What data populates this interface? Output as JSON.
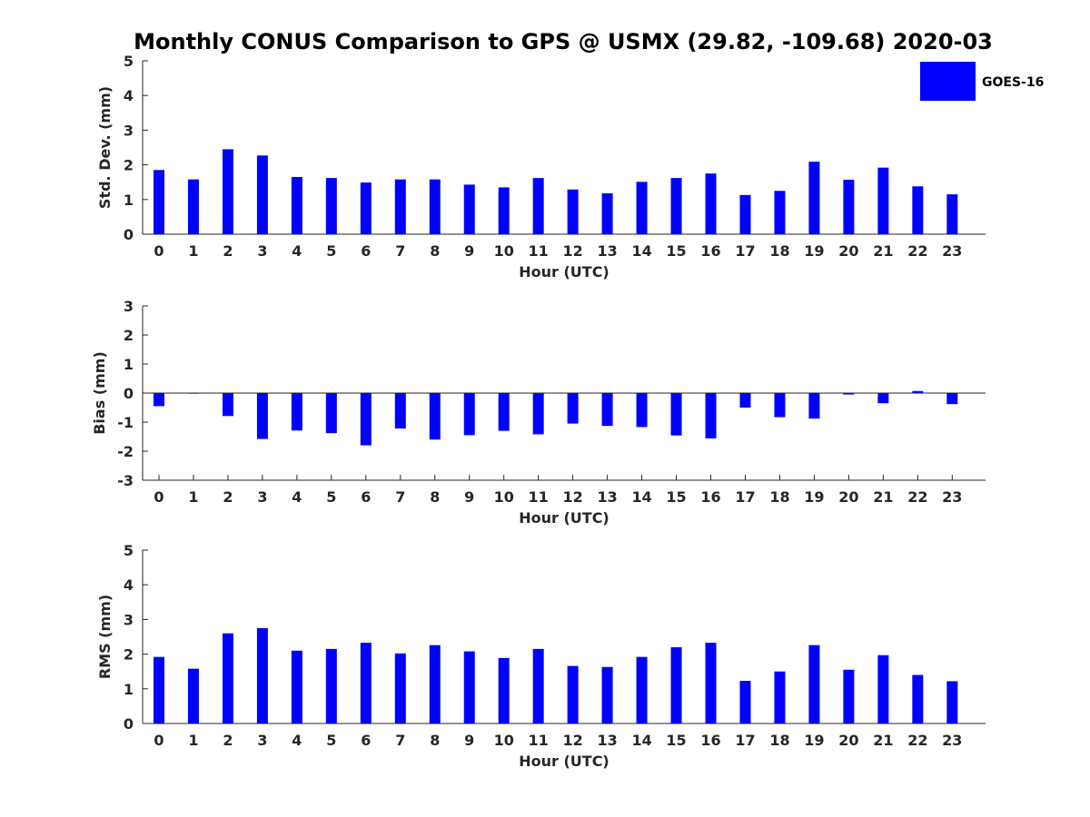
{
  "title": "Monthly CONUS Comparison to GPS @ USMX (29.82, -109.68) 2020-03",
  "legend": {
    "label": "GOES-16",
    "color": "#0000ff",
    "placement": "top-right"
  },
  "chart_data": [
    {
      "type": "bar",
      "xlabel": "Hour (UTC)",
      "ylabel": "Std. Dev. (mm)",
      "ylim": [
        0,
        5
      ],
      "yticks": [
        0,
        1,
        2,
        3,
        4,
        5
      ],
      "categories": [
        "0",
        "1",
        "2",
        "3",
        "4",
        "5",
        "6",
        "7",
        "8",
        "9",
        "10",
        "11",
        "12",
        "13",
        "14",
        "15",
        "16",
        "17",
        "18",
        "19",
        "20",
        "21",
        "22",
        "23"
      ],
      "series": [
        {
          "name": "GOES-16",
          "color": "#0000ff",
          "values": [
            1.85,
            1.58,
            2.45,
            2.27,
            1.65,
            1.62,
            1.49,
            1.58,
            1.58,
            1.43,
            1.35,
            1.62,
            1.29,
            1.18,
            1.51,
            1.62,
            1.75,
            1.13,
            1.25,
            2.09,
            1.57,
            1.92,
            1.38,
            1.15
          ]
        }
      ]
    },
    {
      "type": "bar",
      "xlabel": "Hour (UTC)",
      "ylabel": "Bias (mm)",
      "ylim": [
        -3,
        3
      ],
      "yticks": [
        -3,
        -2,
        -1,
        0,
        1,
        2,
        3
      ],
      "zero_line": true,
      "categories": [
        "0",
        "1",
        "2",
        "3",
        "4",
        "5",
        "6",
        "7",
        "8",
        "9",
        "10",
        "11",
        "12",
        "13",
        "14",
        "15",
        "16",
        "17",
        "18",
        "19",
        "20",
        "21",
        "22",
        "23"
      ],
      "series": [
        {
          "name": "GOES-16",
          "color": "#0000ff",
          "values": [
            -0.45,
            -0.02,
            -0.79,
            -1.58,
            -1.29,
            -1.38,
            -1.8,
            -1.22,
            -1.6,
            -1.45,
            -1.3,
            -1.42,
            -1.05,
            -1.13,
            -1.17,
            -1.46,
            -1.56,
            -0.5,
            -0.83,
            -0.88,
            -0.05,
            -0.35,
            0.07,
            -0.38
          ]
        }
      ]
    },
    {
      "type": "bar",
      "xlabel": "Hour (UTC)",
      "ylabel": "RMS (mm)",
      "ylim": [
        0,
        5
      ],
      "yticks": [
        0,
        1,
        2,
        3,
        4,
        5
      ],
      "categories": [
        "0",
        "1",
        "2",
        "3",
        "4",
        "5",
        "6",
        "7",
        "8",
        "9",
        "10",
        "11",
        "12",
        "13",
        "14",
        "15",
        "16",
        "17",
        "18",
        "19",
        "20",
        "21",
        "22",
        "23"
      ],
      "series": [
        {
          "name": "GOES-16",
          "color": "#0000ff",
          "values": [
            1.92,
            1.58,
            2.6,
            2.75,
            2.1,
            2.15,
            2.33,
            2.02,
            2.26,
            2.08,
            1.89,
            2.15,
            1.66,
            1.63,
            1.92,
            2.2,
            2.33,
            1.23,
            1.5,
            2.26,
            1.55,
            1.97,
            1.4,
            1.22
          ]
        }
      ]
    }
  ]
}
